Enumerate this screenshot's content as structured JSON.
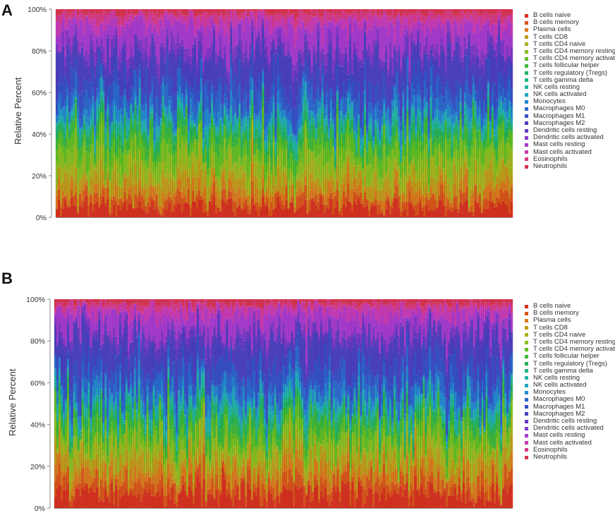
{
  "cell_types": [
    {
      "name": "B cells naive",
      "color": "#d7301f"
    },
    {
      "name": "B cells memory",
      "color": "#d9541a"
    },
    {
      "name": "Plasma cells",
      "color": "#db7a1c"
    },
    {
      "name": "T cells CD8",
      "color": "#c29a1a"
    },
    {
      "name": "T cells CD4 naive",
      "color": "#a9b51d"
    },
    {
      "name": "T cells CD4 memory resting",
      "color": "#88c020"
    },
    {
      "name": "T cells CD4 memory activated",
      "color": "#5fbf22"
    },
    {
      "name": "T cells follicular helper",
      "color": "#3bb83a"
    },
    {
      "name": "T cells regulatory (Tregs)",
      "color": "#22b25a"
    },
    {
      "name": "T cells gamma delta",
      "color": "#1fb484"
    },
    {
      "name": "NK cells resting",
      "color": "#20b3a5"
    },
    {
      "name": "NK cells activated",
      "color": "#21a6c2"
    },
    {
      "name": "Monocytes",
      "color": "#2389d0"
    },
    {
      "name": "Macrophages M0",
      "color": "#2a68cf"
    },
    {
      "name": "Macrophages M1",
      "color": "#3550c7"
    },
    {
      "name": "Macrophages M2",
      "color": "#4a3fc0"
    },
    {
      "name": "Dendritic cells resting",
      "color": "#6238c4"
    },
    {
      "name": "Dendritic cells activated",
      "color": "#8038c8"
    },
    {
      "name": "Mast cells resting",
      "color": "#a83ad0"
    },
    {
      "name": "Mast cells activated",
      "color": "#c93ab6"
    },
    {
      "name": "Eosinophils",
      "color": "#d83a86"
    },
    {
      "name": "Neutrophils",
      "color": "#d9334f"
    }
  ],
  "chart_data": [
    {
      "panel": "A",
      "type": "bar",
      "stacked": true,
      "ylabel": "Relative Percent",
      "ylim": [
        0,
        100
      ],
      "yticks": [
        "0%",
        "20%",
        "40%",
        "60%",
        "80%",
        "100%"
      ],
      "n_samples": 215,
      "legend_position": "right",
      "mean_composition_percent": [
        5,
        4,
        4,
        6,
        6,
        6,
        6,
        4,
        3,
        2,
        3,
        2,
        4,
        6,
        7,
        13,
        3,
        4,
        9,
        4,
        3,
        2
      ]
    },
    {
      "panel": "B",
      "type": "bar",
      "stacked": true,
      "ylabel": "Relative Percent",
      "ylim": [
        0,
        100
      ],
      "yticks": [
        "0%",
        "20%",
        "40%",
        "60%",
        "80%",
        "100%"
      ],
      "n_samples": 219,
      "legend_position": "right",
      "mean_composition_percent": [
        7,
        5,
        5,
        6,
        5,
        5,
        5,
        4,
        3,
        2,
        3,
        2,
        4,
        6,
        8,
        12,
        3,
        3,
        8,
        4,
        2,
        2
      ]
    }
  ]
}
